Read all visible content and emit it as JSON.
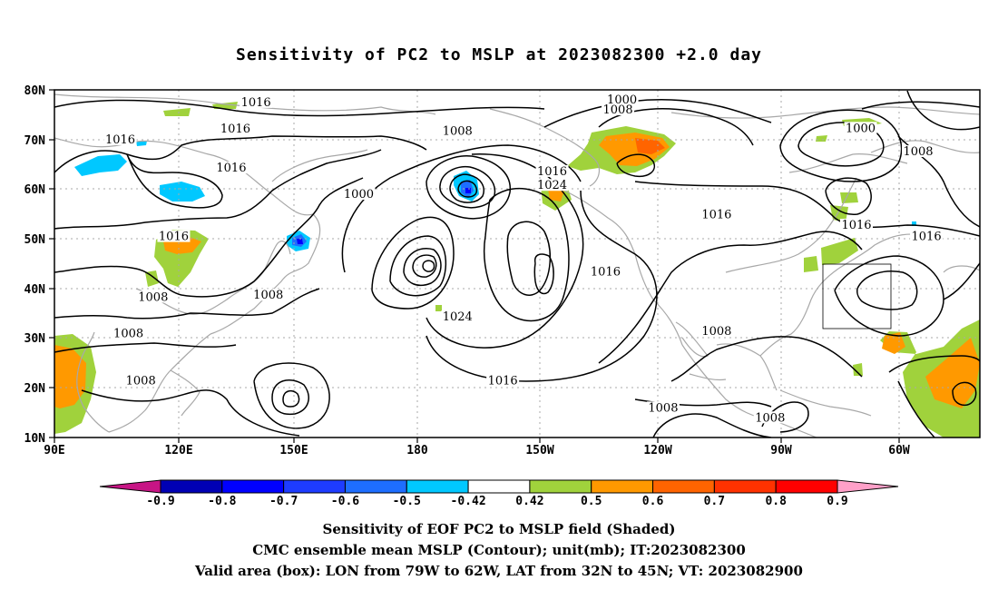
{
  "title": "Sensitivity of PC2 to MSLP at 2023082300 +2.0 day",
  "map": {
    "lon_labels": [
      "90E",
      "120E",
      "150E",
      "180",
      "150W",
      "120W",
      "90W",
      "60W"
    ],
    "lat_labels": [
      "80N",
      "70N",
      "60N",
      "50N",
      "40N",
      "30N",
      "20N",
      "10N"
    ],
    "contour_labels": [
      {
        "text": "1016",
        "lon": 139,
        "lat": 77.1
      },
      {
        "text": "1016",
        "lon": 134,
        "lat": 71.8
      },
      {
        "text": "1016",
        "lon": 133,
        "lat": 63.9
      },
      {
        "text": "1016",
        "lon": 106,
        "lat": 69.6
      },
      {
        "text": "1016",
        "lon": 119,
        "lat": 50.1
      },
      {
        "text": "1016",
        "lon": 211,
        "lat": 63.2
      },
      {
        "text": "1016",
        "lon": 251,
        "lat": 54.5
      },
      {
        "text": "1016",
        "lon": 285,
        "lat": 52.4
      },
      {
        "text": "1016",
        "lon": 302,
        "lat": 50.1
      },
      {
        "text": "1016",
        "lon": 224,
        "lat": 43.0
      },
      {
        "text": "1016",
        "lon": 199,
        "lat": 21.1
      },
      {
        "text": "1000",
        "lon": 228,
        "lat": 77.6
      },
      {
        "text": "1000",
        "lon": 286,
        "lat": 71.9
      },
      {
        "text": "1000",
        "lon": 164,
        "lat": 58.6
      },
      {
        "text": "1008",
        "lon": 227,
        "lat": 75.6
      },
      {
        "text": "1008",
        "lon": 188,
        "lat": 71.3
      },
      {
        "text": "1008",
        "lon": 300,
        "lat": 67.2
      },
      {
        "text": "1008",
        "lon": 142,
        "lat": 38.3
      },
      {
        "text": "1008",
        "lon": 114,
        "lat": 37.9
      },
      {
        "text": "1008",
        "lon": 108,
        "lat": 30.6
      },
      {
        "text": "1008",
        "lon": 111,
        "lat": 21.1
      },
      {
        "text": "1008",
        "lon": 251,
        "lat": 31.0
      },
      {
        "text": "1008",
        "lon": 238,
        "lat": 15.6
      },
      {
        "text": "1008",
        "lon": 264,
        "lat": 13.6
      },
      {
        "text": "1024",
        "lon": 211,
        "lat": 60.4
      },
      {
        "text": "1024",
        "lon": 188,
        "lat": 33.9
      }
    ]
  },
  "colorbar": {
    "ticks": [
      "-0.9",
      "-0.8",
      "-0.7",
      "-0.6",
      "-0.5",
      "-0.42",
      "0.42",
      "0.5",
      "0.6",
      "0.7",
      "0.8",
      "0.9"
    ],
    "colors": [
      "#c71585",
      "#0000b4",
      "#0000ff",
      "#1e3cff",
      "#1e6eff",
      "#00c8ff",
      "#ffffff",
      "#a0d23c",
      "#ff9900",
      "#ff6400",
      "#ff3200",
      "#ff0000",
      "#ffa0c8"
    ]
  },
  "valid_box": {
    "lon_from": "79W",
    "lon_to": "62W",
    "lat_from": "32N",
    "lat_to": "45N"
  },
  "captions": {
    "line1": "Sensitivity of EOF PC2 to MSLP field (Shaded)",
    "line2": "CMC ensemble mean MSLP (Contour); unit(mb); IT:2023082300",
    "line3": "Valid area (box): LON from 79W to 62W, LAT from 32N to 45N; VT: 2023082900"
  }
}
